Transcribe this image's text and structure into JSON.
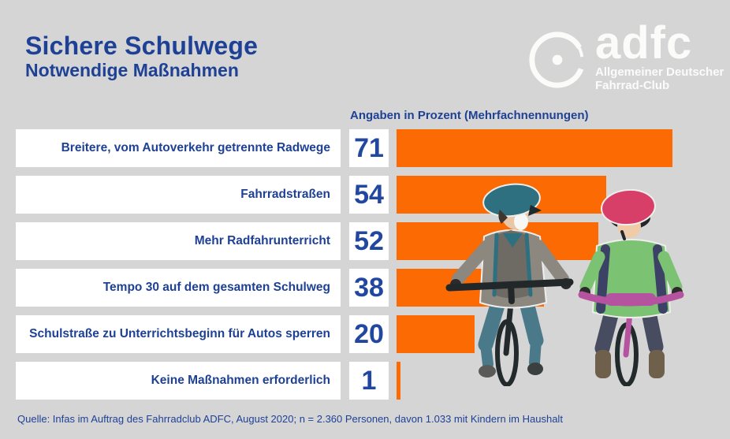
{
  "header": {
    "title": "Sichere Schulwege",
    "subtitle": "Notwendige Maßnahmen"
  },
  "logo": {
    "brand": "adfc",
    "tagline1": "Allgemeiner Deutscher",
    "tagline2": "Fahrrad-Club"
  },
  "chart_data": {
    "type": "bar",
    "orientation": "horizontal",
    "title": "Sichere Schulwege",
    "subtitle": "Notwendige Maßnahmen",
    "value_note": "Angaben in Prozent (Mehrfachnennungen)",
    "unit": "percent",
    "categories": [
      "Breitere, vom Autoverkehr getrennte Radwege",
      "Fahrradstraßen",
      "Mehr Radfahrunterricht",
      "Tempo 30 auf dem gesamten Schulweg",
      "Schulstraße zu Unterrichtsbeginn für Autos sperren",
      "Keine Maßnahmen erforderlich"
    ],
    "values": [
      71,
      54,
      52,
      38,
      20,
      1
    ],
    "xlim": [
      0,
      75
    ],
    "grid": false,
    "legend": "none",
    "bar_color": "#FB6A03",
    "label_color": "#1E4195"
  },
  "footer": {
    "source": "Quelle: Infas im Auftrag des Fahrradclub ADFC, August 2020; n = 2.360 Personen, davon 1.033 mit Kindern im Haushalt"
  },
  "colors": {
    "background": "#D5D5D6",
    "accent_orange": "#FB6A03",
    "text_blue": "#1E4195",
    "box_white": "#FFFFFF",
    "logo_white": "#FBFBFA"
  }
}
